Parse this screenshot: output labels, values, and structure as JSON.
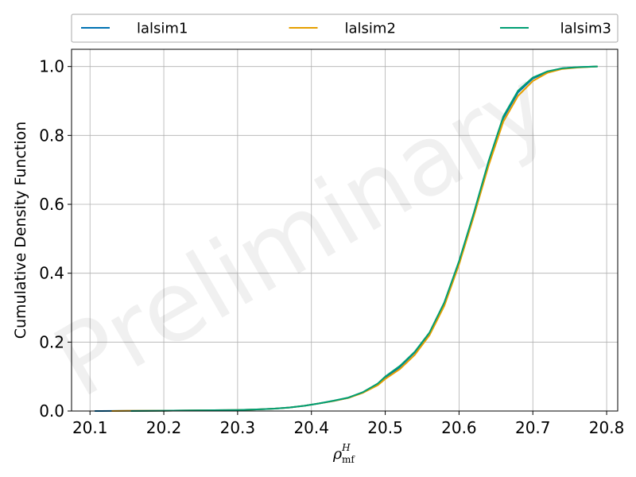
{
  "chart_data": {
    "type": "line",
    "xlabel": {
      "base": "ρ",
      "superscript": "H",
      "subscript": "mf"
    },
    "ylabel": "Cumulative Density Function",
    "watermark": "Preliminary",
    "xlim": [
      20.075,
      20.815
    ],
    "ylim": [
      0.0,
      1.05
    ],
    "xticks": [
      20.1,
      20.2,
      20.3,
      20.4,
      20.5,
      20.6,
      20.7,
      20.8
    ],
    "xtick_labels": [
      "20.1",
      "20.2",
      "20.3",
      "20.4",
      "20.5",
      "20.6",
      "20.7",
      "20.8"
    ],
    "yticks": [
      0.0,
      0.2,
      0.4,
      0.6,
      0.8,
      1.0
    ],
    "ytick_labels": [
      "0.0",
      "0.2",
      "0.4",
      "0.6",
      "0.8",
      "1.0"
    ],
    "grid": true,
    "legend_position": "top",
    "legend_columns": 3,
    "series": [
      {
        "name": "lalsim1",
        "color": "#0072b2",
        "x": [
          20.107,
          20.15,
          20.2,
          20.25,
          20.3,
          20.33,
          20.35,
          20.37,
          20.39,
          20.41,
          20.43,
          20.45,
          20.47,
          20.49,
          20.5,
          20.52,
          20.54,
          20.56,
          20.58,
          20.6,
          20.62,
          20.64,
          20.66,
          20.68,
          20.7,
          20.72,
          20.74,
          20.76,
          20.787
        ],
        "y": [
          0.0,
          0.0005,
          0.001,
          0.002,
          0.003,
          0.005,
          0.007,
          0.01,
          0.015,
          0.022,
          0.029,
          0.038,
          0.054,
          0.078,
          0.095,
          0.128,
          0.17,
          0.225,
          0.31,
          0.43,
          0.57,
          0.72,
          0.85,
          0.925,
          0.965,
          0.985,
          0.995,
          0.998,
          1.0
        ]
      },
      {
        "name": "lalsim2",
        "color": "#e69f00",
        "x": [
          20.13,
          20.15,
          20.2,
          20.25,
          20.3,
          20.33,
          20.35,
          20.37,
          20.39,
          20.41,
          20.43,
          20.45,
          20.47,
          20.49,
          20.5,
          20.52,
          20.54,
          20.56,
          20.58,
          20.6,
          20.62,
          20.64,
          20.66,
          20.68,
          20.7,
          20.72,
          20.74,
          20.76,
          20.787
        ],
        "y": [
          0.0,
          0.0005,
          0.001,
          0.002,
          0.003,
          0.005,
          0.007,
          0.01,
          0.015,
          0.022,
          0.029,
          0.038,
          0.053,
          0.075,
          0.093,
          0.122,
          0.163,
          0.22,
          0.305,
          0.425,
          0.565,
          0.712,
          0.84,
          0.915,
          0.958,
          0.982,
          0.993,
          0.997,
          1.0
        ]
      },
      {
        "name": "lalsim3",
        "color": "#009e73",
        "x": [
          20.156,
          20.2,
          20.25,
          20.3,
          20.33,
          20.35,
          20.37,
          20.39,
          20.41,
          20.43,
          20.45,
          20.47,
          20.49,
          20.5,
          20.52,
          20.54,
          20.56,
          20.58,
          20.6,
          20.62,
          20.64,
          20.66,
          20.68,
          20.7,
          20.72,
          20.74,
          20.76,
          20.787
        ],
        "y": [
          0.0,
          0.001,
          0.002,
          0.003,
          0.005,
          0.007,
          0.01,
          0.015,
          0.022,
          0.03,
          0.039,
          0.055,
          0.08,
          0.1,
          0.131,
          0.172,
          0.228,
          0.315,
          0.435,
          0.575,
          0.725,
          0.855,
          0.93,
          0.968,
          0.986,
          0.995,
          0.998,
          1.0
        ]
      }
    ]
  }
}
